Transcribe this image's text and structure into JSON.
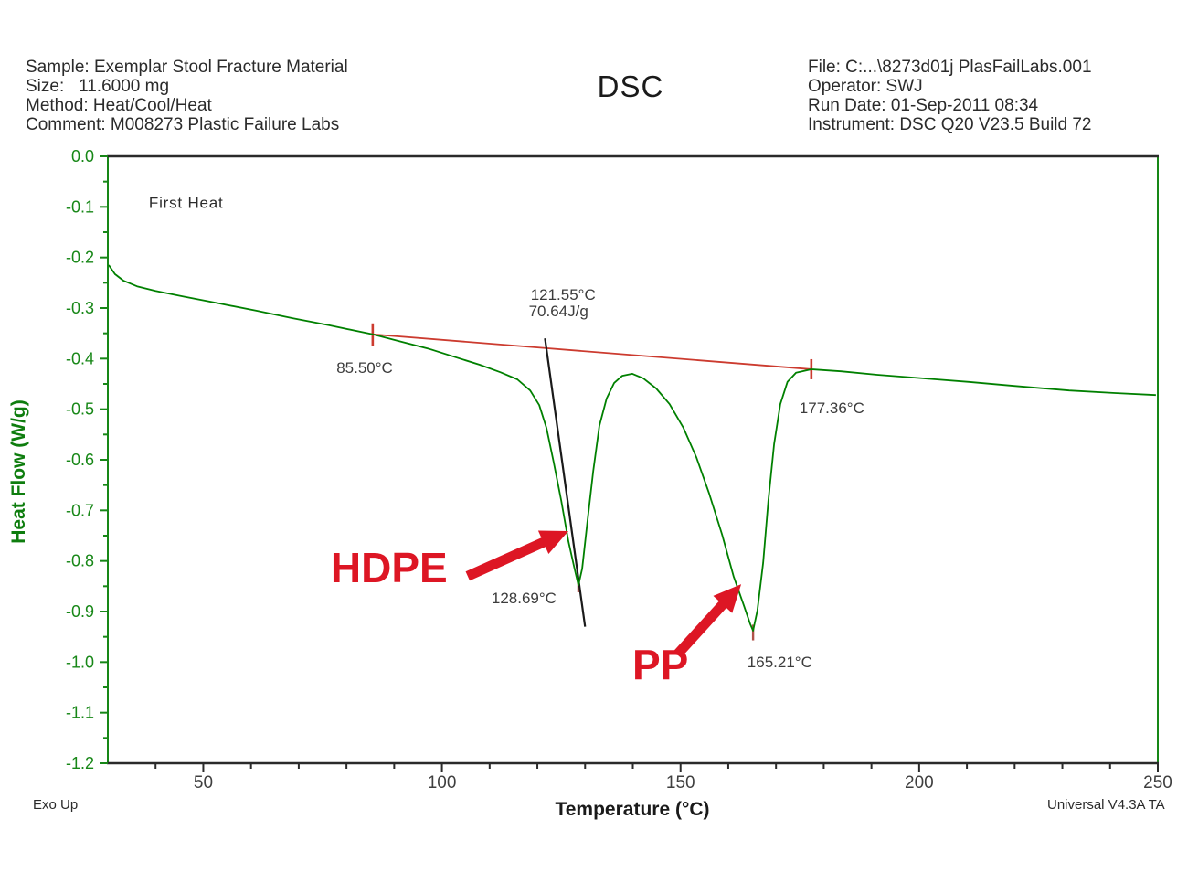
{
  "header": {
    "left": [
      "Sample: Exemplar Stool Fracture Material",
      "Size:   11.6000 mg",
      "Method: Heat/Cool/Heat",
      "Comment: M008273 Plastic Failure Labs"
    ],
    "title": "DSC",
    "right": [
      "File: C:...\\8273d01j PlasFailLabs.001",
      "Operator: SWJ",
      "Run Date: 01-Sep-2011 08:34",
      "Instrument: DSC Q20 V23.5 Build 72"
    ]
  },
  "footer": {
    "left": "Exo Up",
    "right": "Universal V4.3A TA"
  },
  "chart_data": {
    "type": "line",
    "title": "DSC",
    "xlabel": "Temperature (°C)",
    "ylabel": "Heat Flow (W/g)",
    "xlim": [
      30,
      250
    ],
    "ylim": [
      -1.2,
      0.0
    ],
    "x_ticks": [
      50,
      100,
      150,
      200,
      250
    ],
    "x_minor_step": 10,
    "y_tick_labels": [
      "0.0",
      "-0.1",
      "-0.2",
      "-0.3",
      "-0.4",
      "-0.5",
      "-0.6",
      "-0.7",
      "-0.8",
      "-0.9",
      "-1.0",
      "-1.1",
      "-1.2"
    ],
    "y_minor_step": 0.05,
    "grid": false,
    "colors": {
      "curve_green": "#008000",
      "axis_green": "#178717",
      "axis_black": "#2a2a2a",
      "baseline_red": "#cc3b2f",
      "marker_red": "#b0524a",
      "tangent_black": "#1a1a1a",
      "annotation_gray": "#3c3c3c",
      "bright_red": "#dd1624",
      "tick_label_gray": "#3f3f3f"
    },
    "series": [
      {
        "name": "First Heat",
        "points": [
          [
            30.2,
            -0.215
          ],
          [
            31.5,
            -0.233
          ],
          [
            33.3,
            -0.246
          ],
          [
            36.1,
            -0.257
          ],
          [
            40,
            -0.266
          ],
          [
            45.7,
            -0.277
          ],
          [
            53.4,
            -0.291
          ],
          [
            61,
            -0.305
          ],
          [
            68.7,
            -0.32
          ],
          [
            76.3,
            -0.334
          ],
          [
            85.5,
            -0.352
          ],
          [
            91.7,
            -0.367
          ],
          [
            97.4,
            -0.381
          ],
          [
            103.1,
            -0.398
          ],
          [
            107.9,
            -0.412
          ],
          [
            112.3,
            -0.427
          ],
          [
            115.8,
            -0.441
          ],
          [
            118.5,
            -0.463
          ],
          [
            120.4,
            -0.492
          ],
          [
            121.9,
            -0.537
          ],
          [
            123.4,
            -0.604
          ],
          [
            125,
            -0.681
          ],
          [
            126.5,
            -0.761
          ],
          [
            127.7,
            -0.812
          ],
          [
            128.6,
            -0.848
          ],
          [
            129.4,
            -0.815
          ],
          [
            130.5,
            -0.721
          ],
          [
            131.7,
            -0.622
          ],
          [
            133,
            -0.533
          ],
          [
            134.5,
            -0.479
          ],
          [
            136.1,
            -0.448
          ],
          [
            137.8,
            -0.434
          ],
          [
            139.9,
            -0.43
          ],
          [
            142.2,
            -0.439
          ],
          [
            144.9,
            -0.459
          ],
          [
            147.7,
            -0.49
          ],
          [
            150.6,
            -0.537
          ],
          [
            153.3,
            -0.595
          ],
          [
            156,
            -0.667
          ],
          [
            158.7,
            -0.748
          ],
          [
            161.1,
            -0.83
          ],
          [
            163.3,
            -0.889
          ],
          [
            164.6,
            -0.925
          ],
          [
            165.2,
            -0.938
          ],
          [
            166.1,
            -0.898
          ],
          [
            167.3,
            -0.804
          ],
          [
            168.4,
            -0.681
          ],
          [
            169.6,
            -0.569
          ],
          [
            170.9,
            -0.49
          ],
          [
            172.4,
            -0.446
          ],
          [
            174.2,
            -0.428
          ],
          [
            177.4,
            -0.421
          ],
          [
            183.6,
            -0.425
          ],
          [
            191.2,
            -0.432
          ],
          [
            200.8,
            -0.439
          ],
          [
            210.4,
            -0.446
          ],
          [
            219.9,
            -0.454
          ],
          [
            231.4,
            -0.463
          ],
          [
            241,
            -0.468
          ],
          [
            249.6,
            -0.472
          ]
        ]
      }
    ],
    "baseline": {
      "from": [
        85.5,
        -0.352
      ],
      "to": [
        177.4,
        -0.421
      ]
    },
    "tangent": {
      "from": [
        121.6,
        -0.36
      ],
      "to": [
        130.0,
        -0.93
      ]
    },
    "peak_markers": [
      {
        "name": "hdpe-peak-marker",
        "t": 128.6,
        "hf_top": -0.836,
        "hf_bottom": -0.862
      },
      {
        "name": "pp-peak-marker",
        "t": 165.2,
        "hf_top": -0.926,
        "hf_bottom": -0.957
      }
    ],
    "peaks": [
      {
        "material": "HDPE",
        "peak_temp_c": 128.69,
        "peak_heat_flow": -0.85
      },
      {
        "material": "PP",
        "peak_temp_c": 165.21,
        "peak_heat_flow": -0.94
      }
    ],
    "onset": {
      "temp_c": 121.55,
      "enthalpy": "70.64J/g"
    },
    "integration_limits_c": [
      85.5,
      177.36
    ],
    "arrows": [
      {
        "name": "hdpe-arrow",
        "from": [
          105.4,
          -0.83
        ],
        "to": [
          126.5,
          -0.741
        ]
      },
      {
        "name": "pp-arrow",
        "from": [
          149.3,
          -0.985
        ],
        "to": [
          162.7,
          -0.846
        ]
      }
    ],
    "annotations": [
      {
        "name": "first-heat-label",
        "text": "First Heat",
        "t": 38.6,
        "hf": -0.08,
        "size": 17,
        "color": "#2b2b2b",
        "bold": false,
        "spacing": 0.8
      },
      {
        "name": "onset-temp-label",
        "text": "121.55°C",
        "t": 118.6,
        "hf": -0.262,
        "size": 17,
        "color": "#3c3c3c",
        "bold": false,
        "spacing": 0
      },
      {
        "name": "onset-enthalpy-label",
        "text": "70.64J/g",
        "t": 118.2,
        "hf": -0.295,
        "size": 17,
        "color": "#3c3c3c",
        "bold": false,
        "spacing": 0
      },
      {
        "name": "baseline-start-label",
        "text": "85.50°C",
        "t": 77.9,
        "hf": -0.407,
        "size": 17,
        "color": "#3c3c3c",
        "bold": false,
        "spacing": 0
      },
      {
        "name": "baseline-end-label",
        "text": "177.36°C",
        "t": 174.9,
        "hf": -0.486,
        "size": 17,
        "color": "#3c3c3c",
        "bold": false,
        "spacing": 0
      },
      {
        "name": "hdpe-peak-label",
        "text": "128.69°C",
        "t": 110.4,
        "hf": -0.862,
        "size": 17,
        "color": "#3c3c3c",
        "bold": false,
        "spacing": 0
      },
      {
        "name": "pp-peak-label",
        "text": "165.21°C",
        "t": 164.0,
        "hf": -0.989,
        "size": 17,
        "color": "#3c3c3c",
        "bold": false,
        "spacing": 0
      },
      {
        "name": "hdpe-material-label",
        "text": "HDPE",
        "t": 76.7,
        "hf": -0.781,
        "size": 46,
        "color": "#dd1624",
        "bold": true,
        "spacing": 0
      },
      {
        "name": "pp-material-label",
        "text": "PP",
        "t": 139.9,
        "hf": -0.974,
        "size": 46,
        "color": "#dd1624",
        "bold": true,
        "spacing": 0
      }
    ]
  }
}
